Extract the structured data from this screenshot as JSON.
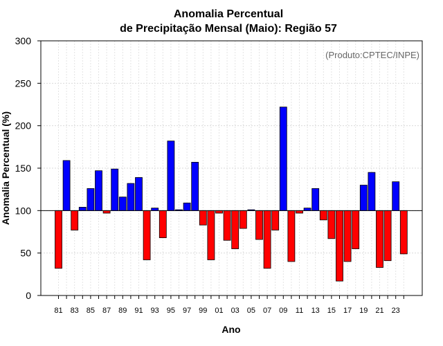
{
  "chart_data": {
    "type": "bar",
    "title_line1": "Anomalia Percentual",
    "title_line2": "de Precipitação Mensal (Maio): Região 57",
    "xlabel": "Ano",
    "ylabel": "Anomalia Percentual (%)",
    "credit": "(Produto:CPTEC/INPE)",
    "baseline": 100,
    "ylim": [
      0,
      300
    ],
    "yticks": [
      0,
      50,
      100,
      150,
      200,
      250,
      300
    ],
    "above_color": "#0000ff",
    "below_color": "#ff0000",
    "categories": [
      "81",
      "82",
      "83",
      "84",
      "85",
      "86",
      "87",
      "88",
      "89",
      "90",
      "91",
      "92",
      "93",
      "94",
      "95",
      "96",
      "97",
      "98",
      "99",
      "00",
      "01",
      "02",
      "03",
      "04",
      "05",
      "06",
      "07",
      "08",
      "09",
      "10",
      "11",
      "12",
      "13",
      "14",
      "15",
      "16",
      "17",
      "18",
      "19",
      "20",
      "21",
      "22",
      "23",
      "24"
    ],
    "xtick_labels": [
      "81",
      "83",
      "85",
      "87",
      "89",
      "91",
      "93",
      "95",
      "97",
      "99",
      "01",
      "03",
      "05",
      "07",
      "09",
      "11",
      "13",
      "15",
      "17",
      "19",
      "21",
      "23"
    ],
    "values": [
      32,
      159,
      77,
      104,
      126,
      147,
      97,
      149,
      116,
      132,
      139,
      42,
      103,
      68,
      182,
      101,
      109,
      157,
      83,
      42,
      97,
      65,
      55,
      79,
      101,
      66,
      32,
      77,
      222,
      40,
      97,
      103,
      126,
      89,
      67,
      17,
      40,
      55,
      130,
      145,
      33,
      41,
      134,
      49
    ]
  }
}
